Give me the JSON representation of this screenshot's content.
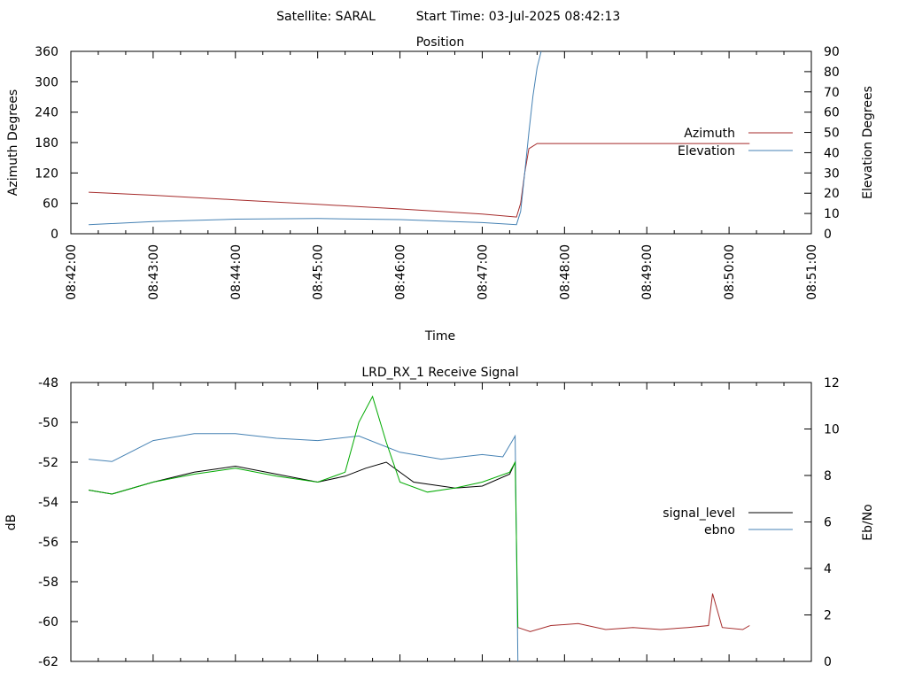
{
  "header": {
    "satellite": "Satellite: SARAL",
    "start_time": "Start Time: 03-Jul-2025 08:42:13"
  },
  "chart_data": [
    {
      "type": "line",
      "title": "Position",
      "xlabel": "Time",
      "ylabel": "Azimuth Degrees",
      "y2label": "Elevation Degrees",
      "xlim": [
        "08:42:00",
        "08:51:00"
      ],
      "ylim": [
        0,
        360
      ],
      "y2lim": [
        0,
        90
      ],
      "x_ticks": [
        "08:42:00",
        "08:43:00",
        "08:44:00",
        "08:45:00",
        "08:46:00",
        "08:47:00",
        "08:48:00",
        "08:49:00",
        "08:50:00",
        "08:51:00"
      ],
      "y_ticks": [
        0,
        60,
        120,
        180,
        240,
        300,
        360
      ],
      "y2_ticks": [
        0,
        10,
        20,
        30,
        40,
        50,
        60,
        70,
        80,
        90
      ],
      "legend_position": "right",
      "series": [
        {
          "name": "Azimuth",
          "axis": "y",
          "color": "#a52a2a",
          "x": [
            "08:42:13",
            "08:43:00",
            "08:44:00",
            "08:45:00",
            "08:46:00",
            "08:47:00",
            "08:47:25",
            "08:47:28",
            "08:47:31",
            "08:47:34",
            "08:47:40",
            "08:48:00",
            "08:49:00",
            "08:50:00",
            "08:50:15"
          ],
          "y": [
            82,
            76,
            67,
            58,
            49,
            39,
            33,
            60,
            120,
            168,
            178,
            178,
            178,
            178,
            178
          ]
        },
        {
          "name": "Elevation",
          "axis": "y2",
          "color": "#4682b4",
          "x": [
            "08:42:13",
            "08:43:00",
            "08:44:00",
            "08:45:00",
            "08:46:00",
            "08:47:00",
            "08:47:25",
            "08:47:28",
            "08:47:31",
            "08:47:34",
            "08:47:37",
            "08:47:40",
            "08:47:43"
          ],
          "y": [
            4.5,
            6.0,
            7.2,
            7.5,
            7.0,
            5.5,
            4.5,
            11,
            30,
            50,
            68,
            82,
            90
          ]
        }
      ]
    },
    {
      "type": "line",
      "title": "LRD_RX_1 Receive Signal",
      "ylabel": "dB",
      "y2label": "Eb/No",
      "xlim": [
        "08:42:00",
        "08:51:00"
      ],
      "ylim": [
        -62,
        -48
      ],
      "y2lim": [
        0,
        12
      ],
      "y_ticks": [
        -62,
        -60,
        -58,
        -56,
        -54,
        -52,
        -50,
        -48
      ],
      "y2_ticks": [
        0,
        2,
        4,
        6,
        8,
        10,
        12
      ],
      "legend_position": "right",
      "series": [
        {
          "name": "signal_level",
          "axis": "y",
          "color": "#000000",
          "x": [
            "08:42:13",
            "08:42:30",
            "08:43:00",
            "08:43:30",
            "08:44:00",
            "08:44:30",
            "08:45:00",
            "08:45:20",
            "08:45:35",
            "08:45:50",
            "08:46:10",
            "08:46:40",
            "08:47:00",
            "08:47:20",
            "08:47:24"
          ],
          "y": [
            -53.4,
            -53.6,
            -53.0,
            -52.5,
            -52.2,
            -52.6,
            -53.0,
            -52.7,
            -52.3,
            -52.0,
            -53.0,
            -53.3,
            -53.2,
            -52.6,
            -52.0
          ]
        },
        {
          "name": "ebno",
          "axis": "y2",
          "color": "#4682b4",
          "x": [
            "08:42:13",
            "08:42:30",
            "08:43:00",
            "08:43:30",
            "08:44:00",
            "08:44:30",
            "08:45:00",
            "08:45:30",
            "08:46:00",
            "08:46:30",
            "08:47:00",
            "08:47:15",
            "08:47:24",
            "08:47:26"
          ],
          "y": [
            8.7,
            8.6,
            9.5,
            9.8,
            9.8,
            9.6,
            9.5,
            9.7,
            9.0,
            8.7,
            8.9,
            8.8,
            9.7,
            0.0
          ]
        },
        {
          "name": "",
          "axis": "y",
          "color": "#00aa00",
          "x": [
            "08:42:13",
            "08:42:30",
            "08:43:00",
            "08:43:30",
            "08:44:00",
            "08:44:30",
            "08:45:00",
            "08:45:20",
            "08:45:30",
            "08:45:40",
            "08:45:50",
            "08:46:00",
            "08:46:20",
            "08:46:40",
            "08:47:00",
            "08:47:20",
            "08:47:24",
            "08:47:25",
            "08:47:26"
          ],
          "y": [
            -53.4,
            -53.6,
            -53.0,
            -52.6,
            -52.3,
            -52.7,
            -53.0,
            -52.5,
            -50.0,
            -48.7,
            -51.0,
            -53.0,
            -53.5,
            -53.3,
            -53.0,
            -52.5,
            -52.0,
            -56.0,
            -60.3
          ]
        },
        {
          "name": "",
          "axis": "y",
          "color": "#a52a2a",
          "x": [
            "08:47:26",
            "08:47:35",
            "08:47:50",
            "08:48:10",
            "08:48:30",
            "08:48:50",
            "08:49:10",
            "08:49:30",
            "08:49:45",
            "08:49:48",
            "08:49:55",
            "08:50:10",
            "08:50:15"
          ],
          "y": [
            -60.3,
            -60.5,
            -60.2,
            -60.1,
            -60.4,
            -60.3,
            -60.4,
            -60.3,
            -60.2,
            -58.6,
            -60.3,
            -60.4,
            -60.2
          ]
        }
      ]
    }
  ]
}
